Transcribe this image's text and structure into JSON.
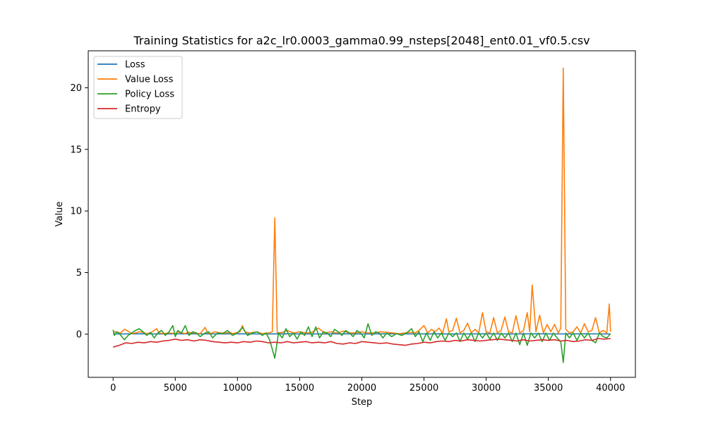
{
  "chart_data": {
    "type": "line",
    "title": "Training Statistics for a2c_lr0.0003_gamma0.99_nsteps[2048]_ent0.01_vf0.5.csv",
    "xlabel": "Step",
    "ylabel": "Value",
    "xlim": [
      -2000,
      42000
    ],
    "ylim": [
      -3.5,
      23.0
    ],
    "xticks": [
      0,
      5000,
      10000,
      15000,
      20000,
      25000,
      30000,
      35000,
      40000
    ],
    "yticks": [
      0,
      5,
      10,
      15,
      20
    ],
    "grid": false,
    "legend_position": "top-left",
    "series": [
      {
        "name": "Loss",
        "color": "#1f77b4",
        "x": [
          0,
          2000,
          4000,
          6000,
          8000,
          10000,
          12000,
          14000,
          16000,
          18000,
          20000,
          22000,
          24000,
          26000,
          28000,
          30000,
          32000,
          34000,
          36000,
          38000,
          40000
        ],
        "y": [
          0.02,
          0.03,
          0.02,
          0.03,
          0.02,
          0.03,
          0.02,
          0.03,
          0.02,
          0.03,
          0.02,
          0.03,
          0.02,
          0.03,
          0.02,
          0.03,
          0.02,
          0.03,
          0.02,
          0.03,
          0.02
        ]
      },
      {
        "name": "Value Loss",
        "color": "#ff7f0e",
        "x": [
          0,
          100,
          400,
          600,
          900,
          1200,
          1500,
          1800,
          2100,
          2400,
          2700,
          3000,
          3300,
          3500,
          3700,
          4000,
          4500,
          5000,
          5200,
          5500,
          5800,
          6000,
          6500,
          7000,
          7400,
          7600,
          7800,
          8200,
          8600,
          9000,
          9400,
          9600,
          9800,
          10200,
          10400,
          10600,
          11000,
          11500,
          12000,
          12500,
          12800,
          13000,
          13200,
          13600,
          14000,
          14500,
          15000,
          15500,
          16000,
          16500,
          17000,
          17500,
          18000,
          18500,
          19000,
          19500,
          20000,
          20500,
          21000,
          21500,
          22000,
          22500,
          23000,
          23500,
          24000,
          24300,
          24600,
          25000,
          25300,
          25600,
          25900,
          26200,
          26500,
          26800,
          27000,
          27300,
          27600,
          27900,
          28200,
          28500,
          28800,
          29100,
          29400,
          29700,
          30000,
          30300,
          30600,
          30900,
          31200,
          31500,
          31800,
          32100,
          32400,
          32700,
          33000,
          33300,
          33500,
          33700,
          34000,
          34300,
          34600,
          34900,
          35200,
          35500,
          35800,
          36000,
          36200,
          36400,
          36700,
          37000,
          37300,
          37600,
          37900,
          38200,
          38500,
          38800,
          39100,
          39400,
          39700,
          39900,
          40000
        ],
        "y": [
          0.25,
          0.2,
          0.15,
          0.1,
          0.4,
          0.25,
          0.05,
          0.1,
          0.2,
          0.15,
          0.05,
          0.1,
          0.3,
          0.45,
          0.1,
          0.05,
          0.1,
          0.05,
          0.2,
          0.1,
          0.05,
          0.15,
          0.1,
          0.05,
          0.55,
          0.1,
          0.05,
          0.2,
          0.1,
          0.1,
          0.15,
          0.05,
          0.1,
          0.2,
          0.7,
          0.2,
          0.1,
          0.2,
          0.05,
          0.1,
          0.2,
          9.45,
          0.1,
          0.15,
          0.3,
          0.1,
          0.2,
          0.1,
          0.15,
          0.5,
          0.1,
          0.2,
          0.1,
          0.25,
          0.1,
          0.1,
          0.2,
          0.1,
          0.1,
          0.2,
          0.15,
          0.1,
          0.05,
          0.1,
          0.15,
          0.1,
          0.3,
          0.7,
          0.1,
          0.4,
          0.2,
          0.5,
          0.1,
          1.25,
          0.2,
          0.3,
          1.3,
          0.1,
          0.3,
          0.9,
          0.1,
          0.4,
          0.1,
          1.75,
          0.2,
          0.1,
          1.35,
          0.1,
          0.3,
          1.4,
          0.2,
          0.1,
          1.5,
          0.1,
          0.3,
          1.75,
          0.2,
          4.0,
          0.2,
          1.55,
          0.1,
          0.8,
          0.2,
          0.8,
          0.1,
          0.5,
          21.6,
          0.4,
          0.1,
          0.2,
          0.6,
          0.1,
          0.85,
          0.2,
          0.3,
          1.35,
          0.1,
          0.3,
          0.1,
          2.45,
          0.2
        ]
      },
      {
        "name": "Policy Loss",
        "color": "#2ca02c",
        "x": [
          0,
          100,
          300,
          500,
          700,
          900,
          1200,
          1500,
          1800,
          2100,
          2400,
          2700,
          3000,
          3300,
          3600,
          3900,
          4200,
          4500,
          4800,
          5000,
          5200,
          5500,
          5800,
          6100,
          6400,
          6700,
          7000,
          7400,
          7700,
          8000,
          8400,
          8800,
          9200,
          9600,
          10000,
          10400,
          10800,
          11200,
          11600,
          12000,
          12300,
          12600,
          13000,
          13300,
          13600,
          13900,
          14200,
          14500,
          14800,
          15100,
          15400,
          15700,
          16000,
          16300,
          16600,
          16900,
          17200,
          17500,
          17800,
          18100,
          18400,
          18700,
          19000,
          19300,
          19600,
          19900,
          20200,
          20500,
          20800,
          21100,
          21400,
          21700,
          22000,
          22400,
          22800,
          23200,
          23600,
          24000,
          24300,
          24600,
          24900,
          25200,
          25500,
          25800,
          26100,
          26400,
          26700,
          27000,
          27300,
          27600,
          27900,
          28200,
          28500,
          28800,
          29100,
          29400,
          29700,
          30000,
          30300,
          30600,
          30900,
          31200,
          31500,
          31800,
          32100,
          32400,
          32700,
          33000,
          33300,
          33600,
          33900,
          34200,
          34500,
          34800,
          35100,
          35400,
          35700,
          36000,
          36200,
          36400,
          36700,
          37000,
          37300,
          37600,
          37900,
          38200,
          38500,
          38800,
          39100,
          39400,
          39700,
          40000
        ],
        "y": [
          0.35,
          -0.1,
          0.2,
          0.05,
          -0.2,
          -0.45,
          -0.1,
          0.1,
          0.3,
          0.45,
          0.2,
          -0.1,
          0.15,
          -0.3,
          0.1,
          0.3,
          -0.1,
          0.2,
          0.7,
          -0.2,
          0.3,
          0.1,
          0.7,
          -0.1,
          0.2,
          0.1,
          -0.2,
          0.1,
          0.2,
          -0.3,
          0.1,
          0.05,
          0.3,
          -0.1,
          0.1,
          0.55,
          -0.1,
          0.1,
          0.2,
          -0.1,
          0.1,
          -0.5,
          -1.95,
          0.1,
          -0.3,
          0.45,
          -0.2,
          0.1,
          -0.4,
          0.2,
          -0.1,
          0.6,
          -0.2,
          0.6,
          -0.3,
          0.2,
          0.1,
          -0.2,
          0.4,
          0.2,
          -0.1,
          0.3,
          0.1,
          -0.2,
          0.3,
          0.1,
          -0.3,
          0.85,
          -0.1,
          0.2,
          0.1,
          -0.3,
          0.1,
          -0.2,
          0.05,
          -0.1,
          0.1,
          0.45,
          -0.2,
          0.2,
          -0.6,
          0.1,
          -0.5,
          0.2,
          -0.3,
          0.1,
          -0.5,
          0.1,
          -0.2,
          0.1,
          -0.6,
          0.1,
          -0.4,
          0.1,
          -0.6,
          0.1,
          -0.3,
          0.1,
          -0.4,
          0.1,
          -0.5,
          0.1,
          -0.3,
          0.1,
          -0.6,
          0.1,
          -0.85,
          0.1,
          -0.9,
          0.1,
          -0.3,
          0.1,
          -0.6,
          0.1,
          -0.5,
          0.1,
          -0.3,
          -0.6,
          -2.3,
          0.1,
          -0.3,
          0.1,
          -0.5,
          0.1,
          -0.3,
          0.1,
          -0.5,
          -0.7,
          0.1,
          -0.2,
          -0.3,
          0.05
        ]
      },
      {
        "name": "Entropy",
        "color": "#d62728",
        "x": [
          0,
          500,
          1000,
          1500,
          2000,
          2500,
          3000,
          3500,
          4000,
          4500,
          5000,
          5500,
          6000,
          6500,
          7000,
          7500,
          8000,
          8500,
          9000,
          9500,
          10000,
          10500,
          11000,
          11500,
          12000,
          12500,
          13000,
          13500,
          14000,
          14500,
          15000,
          15500,
          16000,
          16500,
          17000,
          17500,
          18000,
          18500,
          19000,
          19500,
          20000,
          20500,
          21000,
          21500,
          22000,
          22500,
          23000,
          23500,
          24000,
          24500,
          25000,
          25500,
          26000,
          26500,
          27000,
          27500,
          28000,
          28500,
          29000,
          29500,
          30000,
          30500,
          31000,
          31500,
          32000,
          32500,
          33000,
          33500,
          34000,
          34500,
          35000,
          35500,
          36000,
          36500,
          37000,
          37500,
          38000,
          38500,
          39000,
          39500,
          40000
        ],
        "y": [
          -1.05,
          -0.9,
          -0.7,
          -0.75,
          -0.65,
          -0.7,
          -0.6,
          -0.65,
          -0.55,
          -0.5,
          -0.4,
          -0.5,
          -0.45,
          -0.55,
          -0.45,
          -0.5,
          -0.6,
          -0.65,
          -0.7,
          -0.65,
          -0.7,
          -0.6,
          -0.65,
          -0.55,
          -0.6,
          -0.7,
          -0.65,
          -0.7,
          -0.6,
          -0.7,
          -0.65,
          -0.6,
          -0.7,
          -0.65,
          -0.7,
          -0.6,
          -0.75,
          -0.8,
          -0.7,
          -0.75,
          -0.6,
          -0.65,
          -0.7,
          -0.75,
          -0.7,
          -0.8,
          -0.85,
          -0.9,
          -0.8,
          -0.75,
          -0.65,
          -0.7,
          -0.6,
          -0.55,
          -0.6,
          -0.5,
          -0.55,
          -0.45,
          -0.5,
          -0.55,
          -0.5,
          -0.45,
          -0.4,
          -0.45,
          -0.5,
          -0.55,
          -0.45,
          -0.55,
          -0.5,
          -0.45,
          -0.5,
          -0.45,
          -0.55,
          -0.5,
          -0.6,
          -0.55,
          -0.45,
          -0.5,
          -0.35,
          -0.4,
          -0.35
        ]
      }
    ]
  }
}
